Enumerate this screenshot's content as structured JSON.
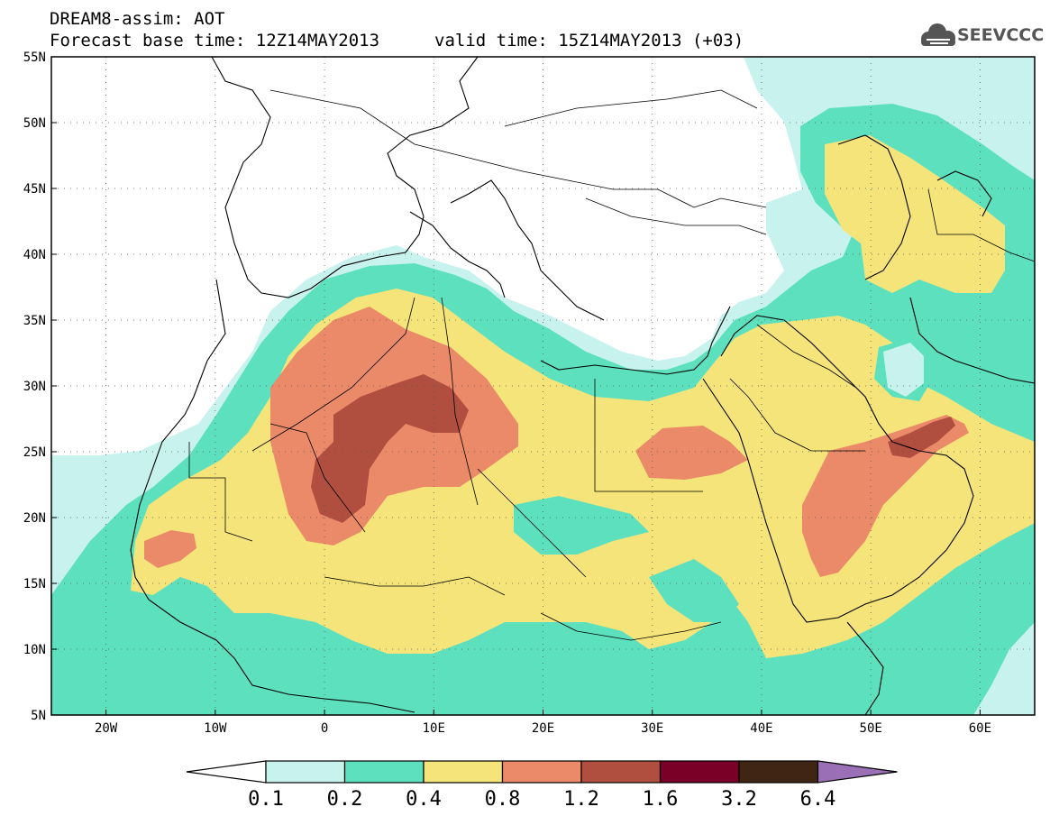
{
  "header": {
    "line1": "DREAM8-assim: AOT",
    "line2": "Forecast base time: 12Z14MAY2013",
    "line3": "valid time: 15Z14MAY2013 (+03)",
    "logo_text": "SEEVCCC",
    "logo_icon": "cloud-icon"
  },
  "map": {
    "lon_range": [
      -25,
      65
    ],
    "lat_range": [
      5,
      55
    ],
    "lat_labels": [
      "5N",
      "10N",
      "15N",
      "20N",
      "25N",
      "30N",
      "35N",
      "40N",
      "45N",
      "50N",
      "55N"
    ],
    "lon_labels": [
      "20W",
      "10W",
      "0",
      "10E",
      "20E",
      "30E",
      "40E",
      "50E",
      "60E"
    ],
    "grid": "dotted",
    "background": "#ffffff"
  },
  "legend": {
    "ticks": [
      "0.1",
      "0.2",
      "0.4",
      "0.8",
      "1.2",
      "1.6",
      "3.2",
      "6.4"
    ],
    "colors": [
      "#c8f2ee",
      "#5ce0be",
      "#f5e47a",
      "#ea8a68",
      "#b04e40",
      "#7a0028",
      "#402414"
    ],
    "arrow_left_color": "#ffffff",
    "arrow_right_color": "#9a6fb6"
  }
}
